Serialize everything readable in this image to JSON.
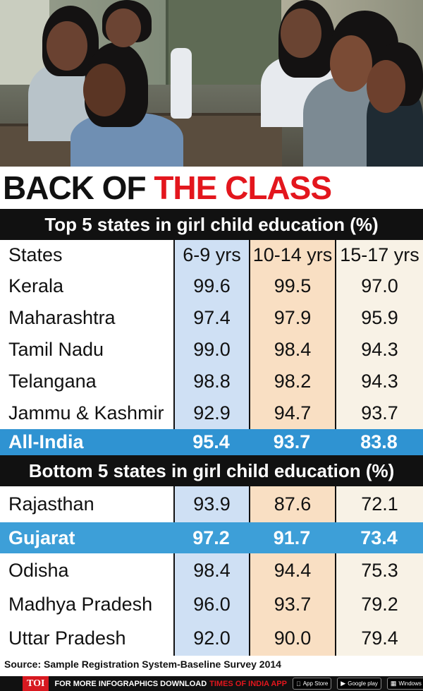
{
  "headline": {
    "part1": "BACK OF ",
    "part2": "THE CLASS"
  },
  "top_section": {
    "title": "Top 5 states in girl child education (%)"
  },
  "bottom_section": {
    "title": "Bottom 5 states in girl child education (%)"
  },
  "chart_data": {
    "type": "table",
    "columns": [
      "States",
      "6-9 yrs",
      "10-14 yrs",
      "15-17 yrs"
    ],
    "top_rows": [
      {
        "state": "Kerala",
        "values": [
          "99.6",
          "99.5",
          "97.0"
        ]
      },
      {
        "state": "Maharashtra",
        "values": [
          "97.4",
          "97.9",
          "95.9"
        ]
      },
      {
        "state": "Tamil Nadu",
        "values": [
          "99.0",
          "98.4",
          "94.3"
        ]
      },
      {
        "state": "Telangana",
        "values": [
          "98.8",
          "98.2",
          "94.3"
        ]
      },
      {
        "state": "Jammu & Kashmir",
        "values": [
          "92.9",
          "94.7",
          "93.7"
        ]
      }
    ],
    "all_india": {
      "state": "All-India",
      "values": [
        "95.4",
        "93.7",
        "83.8"
      ]
    },
    "bottom_rows": [
      {
        "state": "Rajasthan",
        "values": [
          "93.9",
          "87.6",
          "72.1"
        ],
        "highlight": false
      },
      {
        "state": "Gujarat",
        "values": [
          "97.2",
          "91.7",
          "73.4"
        ],
        "highlight": true
      },
      {
        "state": "Odisha",
        "values": [
          "98.4",
          "94.4",
          "75.3"
        ],
        "highlight": false
      },
      {
        "state": "Madhya Pradesh",
        "values": [
          "96.0",
          "93.7",
          "79.2"
        ],
        "highlight": false
      },
      {
        "state": "Uttar Pradesh",
        "values": [
          "92.0",
          "90.0",
          "79.4"
        ],
        "highlight": false
      }
    ],
    "column_colors": [
      "#cfe0f4",
      "#f9dfc3",
      "#f8f2e6"
    ],
    "highlight_color": "#2f93d2"
  },
  "source": "Source: Sample Registration System-Baseline Survey 2014",
  "footer": {
    "badge": "TOI",
    "text": "FOR MORE INFOGRAPHICS DOWNLOAD",
    "brand": "TIMES OF INDIA APP",
    "stores": [
      {
        "icon": "apple-icon",
        "label": "App Store"
      },
      {
        "icon": "google-play-icon",
        "label": "Google play"
      },
      {
        "icon": "windows-icon",
        "label": "Windows Phone"
      }
    ]
  },
  "colors": {
    "accent_red": "#e3161d",
    "bar_black": "#111111"
  }
}
